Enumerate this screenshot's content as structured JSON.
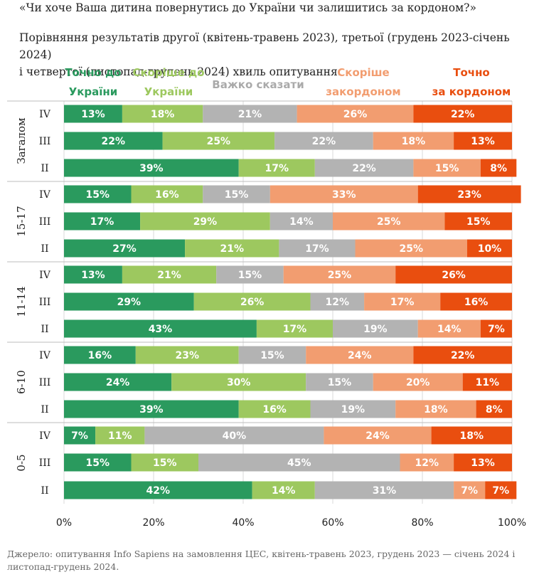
{
  "title": "«Чи хоче Ваша дитина повернутись до України чи залишитись за кордоном?»",
  "subtitle_line1": "Порівняння результатів другої (квітень-травень 2023), третьої (грудень 2023-січень 2024)",
  "subtitle_line2": "і четвертої (листопад-грудень 2024) хвиль опитування.",
  "source": "Джерело: опитування Info Sapiens на замовлення ЦЕС, квітень-травень 2023, грудень 2023 — січень 2024 і листопад-грудень 2024.",
  "chart_data": {
    "type": "bar",
    "orientation": "horizontal",
    "stacked": true,
    "xlim": [
      0,
      100
    ],
    "x_ticks": [
      "0%",
      "20%",
      "40%",
      "60%",
      "80%",
      "100%"
    ],
    "grid": true,
    "legend_position": "top",
    "series": [
      {
        "name": "Точно до України",
        "legend_lines": [
          "Точно до",
          "України"
        ],
        "color": "#2a9a5e",
        "text_color": "#2a9a5e"
      },
      {
        "name": "Скоріше до України",
        "legend_lines": [
          "Скоріше до",
          "України"
        ],
        "color": "#9dc85f",
        "text_color": "#9dc85f"
      },
      {
        "name": "Важко сказати",
        "legend_lines": [
          "Важко сказати"
        ],
        "color": "#b3b3b3",
        "text_color": "#aaaaaa"
      },
      {
        "name": "Скоріше закордоном",
        "legend_lines": [
          "Скоріше",
          "закордоном"
        ],
        "color": "#f29d70",
        "text_color": "#f29d70"
      },
      {
        "name": "Точно за кордоном",
        "legend_lines": [
          "Точно",
          "за кордоном"
        ],
        "color": "#e94e0f",
        "text_color": "#e94e0f"
      }
    ],
    "groups": [
      {
        "name": "Загалом",
        "rows": [
          {
            "wave": "IV",
            "values": [
              13,
              18,
              21,
              26,
              22
            ]
          },
          {
            "wave": "III",
            "values": [
              22,
              25,
              22,
              18,
              13
            ]
          },
          {
            "wave": "II",
            "values": [
              39,
              17,
              22,
              15,
              8
            ]
          }
        ]
      },
      {
        "name": "15-17",
        "rows": [
          {
            "wave": "IV",
            "values": [
              15,
              16,
              15,
              33,
              23
            ]
          },
          {
            "wave": "III",
            "values": [
              17,
              29,
              14,
              25,
              15
            ]
          },
          {
            "wave": "II",
            "values": [
              27,
              21,
              17,
              25,
              10
            ]
          }
        ]
      },
      {
        "name": "11-14",
        "rows": [
          {
            "wave": "IV",
            "values": [
              13,
              21,
              15,
              25,
              26
            ]
          },
          {
            "wave": "III",
            "values": [
              29,
              26,
              12,
              17,
              16
            ]
          },
          {
            "wave": "II",
            "values": [
              43,
              17,
              19,
              14,
              7
            ]
          }
        ]
      },
      {
        "name": "6-10",
        "rows": [
          {
            "wave": "IV",
            "values": [
              16,
              23,
              15,
              24,
              22
            ]
          },
          {
            "wave": "III",
            "values": [
              24,
              30,
              15,
              20,
              11
            ]
          },
          {
            "wave": "II",
            "values": [
              39,
              16,
              19,
              18,
              8
            ]
          }
        ]
      },
      {
        "name": "0-5",
        "rows": [
          {
            "wave": "IV",
            "values": [
              7,
              11,
              40,
              24,
              18
            ]
          },
          {
            "wave": "III",
            "values": [
              15,
              15,
              45,
              12,
              13
            ]
          },
          {
            "wave": "II",
            "values": [
              42,
              14,
              31,
              7,
              7
            ]
          }
        ]
      }
    ]
  }
}
